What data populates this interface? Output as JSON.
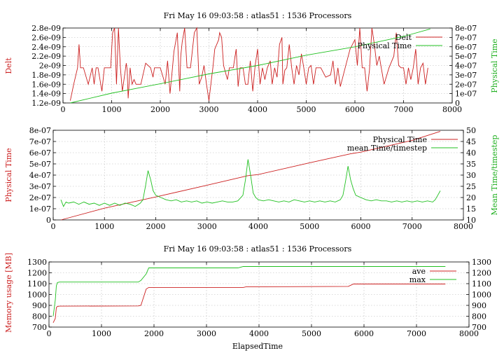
{
  "chart_data": [
    {
      "type": "line",
      "title": "Fri May 16 09:03:58 : atlas51 : 1536 Processors",
      "xlabel": "",
      "ylabel": "Delt",
      "y2label": "Physical Time",
      "xlim": [
        0,
        8000
      ],
      "ylim": [
        1.2e-09,
        2.8e-09
      ],
      "y2lim": [
        0,
        8e-07
      ],
      "x_ticks": [
        0,
        1000,
        2000,
        3000,
        4000,
        5000,
        6000,
        7000,
        8000
      ],
      "x_tick_labels": [
        "0",
        "1000",
        "2000",
        "3000",
        "4000",
        "5000",
        "6000",
        "7000",
        "8000"
      ],
      "y_ticks": [
        1.2e-09,
        1.4e-09,
        1.6e-09,
        1.8e-09,
        2e-09,
        2.2e-09,
        2.4e-09,
        2.6e-09,
        2.8e-09
      ],
      "y_tick_labels": [
        "1.2e-09",
        "1.4e-09",
        "1.6e-09",
        "1.8e-09",
        "2e-09",
        "2.2e-09",
        "2.4e-09",
        "2.6e-09",
        "2.8e-09"
      ],
      "y2_ticks": [
        0,
        1e-07,
        2e-07,
        3e-07,
        4e-07,
        5e-07,
        6e-07,
        7e-07,
        8e-07
      ],
      "y2_tick_labels": [
        "0",
        "1e-07",
        "2e-07",
        "3e-07",
        "4e-07",
        "5e-07",
        "6e-07",
        "7e-07",
        "8e-07"
      ],
      "grid": true,
      "legend": "top-right",
      "series": [
        {
          "name": "Delt",
          "axis": "left",
          "color": "#cc2020",
          "x": [
            150,
            220,
            300,
            330,
            360,
            380,
            420,
            520,
            600,
            640,
            680,
            720,
            800,
            850,
            900,
            980,
            1020,
            1060,
            1100,
            1140,
            1180,
            1220,
            1300,
            1320,
            1340,
            1380,
            1420,
            1460,
            1500,
            1600,
            1700,
            1800,
            1850,
            1880,
            1900,
            1950,
            2000,
            2100,
            2150,
            2200,
            2250,
            2280,
            2350,
            2400,
            2420,
            2450,
            2500,
            2550,
            2620,
            2700,
            2750,
            2800,
            2850,
            2900,
            2950,
            3000,
            3050,
            3080,
            3120,
            3200,
            3220,
            3260,
            3300,
            3380,
            3420,
            3500,
            3560,
            3600,
            3640,
            3700,
            3750,
            3800,
            3850,
            3900,
            3950,
            4000,
            4050,
            4100,
            4150,
            4200,
            4260,
            4300,
            4350,
            4400,
            4450,
            4500,
            4520,
            4560,
            4600,
            4650,
            4700,
            4750,
            4800,
            4850,
            4900,
            4950,
            5000,
            5050,
            5100,
            5150,
            5200,
            5300,
            5400,
            5500,
            5550,
            5600,
            5650,
            5700,
            5800,
            5900,
            6000,
            6050,
            6100,
            6150,
            6200,
            6250,
            6300,
            6350,
            6400,
            6450,
            6500,
            6600,
            6700,
            6800,
            6850,
            6900,
            6950,
            7000,
            7050,
            7100,
            7150,
            7200,
            7250,
            7300,
            7350,
            7400,
            7450,
            7500
          ],
          "values": [
            1.25e-09,
            1.6e-09,
            1.95e-09,
            2.45e-09,
            1.95e-09,
            1.95e-09,
            1.95e-09,
            1.6e-09,
            1.95e-09,
            1.6e-09,
            1.95e-09,
            1.95e-09,
            1.45e-09,
            1.95e-09,
            1.95e-09,
            1.95e-09,
            2.7e-09,
            2.8e-09,
            1.6e-09,
            2.8e-09,
            1.95e-09,
            1.45e-09,
            2.05e-09,
            1.9e-09,
            1.3e-09,
            1.95e-09,
            1.6e-09,
            1.7e-09,
            1.6e-09,
            1.6e-09,
            2.05e-09,
            1.95e-09,
            1.75e-09,
            1.95e-09,
            1.95e-09,
            1.95e-09,
            1.95e-09,
            1.6e-09,
            2.1e-09,
            1.4e-09,
            1.95e-09,
            2.3e-09,
            2.7e-09,
            1.45e-09,
            2.2e-09,
            2.5e-09,
            2.8e-09,
            1.95e-09,
            1.95e-09,
            2.7e-09,
            2.8e-09,
            1.6e-09,
            1.75e-09,
            2e-09,
            1.6e-09,
            1.25e-09,
            1.7e-09,
            1.95e-09,
            2.35e-09,
            2.55e-09,
            2.7e-09,
            2.6e-09,
            2e-09,
            1.7e-09,
            1.95e-09,
            1.95e-09,
            2.35e-09,
            1.55e-09,
            1.95e-09,
            1.95e-09,
            1.6e-09,
            1.6e-09,
            2.1e-09,
            1.45e-09,
            2e-09,
            2.35e-09,
            1.6e-09,
            1.95e-09,
            1.7e-09,
            1.95e-09,
            2.1e-09,
            1.6e-09,
            1.95e-09,
            1.75e-09,
            2.45e-09,
            2.6e-09,
            1.6e-09,
            1.9e-09,
            1.95e-09,
            2.45e-09,
            1.95e-09,
            1.6e-09,
            2e-09,
            1.8e-09,
            2.25e-09,
            1.95e-09,
            1.6e-09,
            1.95e-09,
            2e-09,
            1.6e-09,
            1.95e-09,
            1.95e-09,
            1.75e-09,
            1.8e-09,
            2.1e-09,
            1.6e-09,
            1.95e-09,
            1.55e-09,
            1.95e-09,
            2.35e-09,
            2.55e-09,
            2e-09,
            2.8e-09,
            1.95e-09,
            1.95e-09,
            1.45e-09,
            1.9e-09,
            2.8e-09,
            2.45e-09,
            2e-09,
            2.2e-09,
            1.6e-09,
            1.95e-09,
            2.2e-09,
            2.7e-09,
            2e-09,
            1.95e-09,
            1.95e-09,
            1.6e-09,
            1.95e-09,
            1.7e-09,
            1.95e-09,
            2.35e-09,
            1.6e-09,
            1.95e-09,
            2.05e-09,
            1.6e-09,
            1.95e-09
          ]
        },
        {
          "name": "Physical Time",
          "axis": "right",
          "color": "#20c020",
          "x": [
            150,
            1000,
            2000,
            3000,
            4000,
            5000,
            6000,
            7000,
            7550
          ],
          "values": [
            0,
            1.05e-07,
            2.05e-07,
            3.1e-07,
            4e-07,
            5.1e-07,
            6e-07,
            7.1e-07,
            7.9e-07
          ]
        }
      ]
    },
    {
      "type": "line",
      "title": "",
      "xlabel": "",
      "ylabel": "Physical Time",
      "y2label": "Mean Time/timestep",
      "xlim": [
        0,
        8000
      ],
      "ylim": [
        0,
        8e-07
      ],
      "y2lim": [
        10,
        50
      ],
      "x_ticks": [
        0,
        1000,
        2000,
        3000,
        4000,
        5000,
        6000,
        7000,
        8000
      ],
      "x_tick_labels": [
        "0",
        "1000",
        "2000",
        "3000",
        "4000",
        "5000",
        "6000",
        "7000",
        "8000"
      ],
      "y_ticks": [
        0,
        1e-07,
        2e-07,
        3e-07,
        4e-07,
        5e-07,
        6e-07,
        7e-07,
        8e-07
      ],
      "y_tick_labels": [
        "0",
        "1e-07",
        "2e-07",
        "3e-07",
        "4e-07",
        "5e-07",
        "6e-07",
        "7e-07",
        "8e-07"
      ],
      "y2_ticks": [
        10,
        15,
        20,
        25,
        30,
        35,
        40,
        45,
        50
      ],
      "y2_tick_labels": [
        "10",
        "15",
        "20",
        "25",
        "30",
        "35",
        "40",
        "45",
        "50"
      ],
      "grid": true,
      "legend": "top-right",
      "series": [
        {
          "name": "Physical Time",
          "axis": "left",
          "color": "#cc2020",
          "x": [
            150,
            1000,
            2000,
            3000,
            3800,
            4000,
            5000,
            5800,
            6000,
            7000,
            7550
          ],
          "values": [
            0,
            1.05e-07,
            2.05e-07,
            3.1e-07,
            3.95e-07,
            4.05e-07,
            5.1e-07,
            5.9e-07,
            6.05e-07,
            7.1e-07,
            7.9e-07
          ]
        },
        {
          "name": "mean Time/timestep",
          "axis": "right",
          "color": "#20c020",
          "x": [
            150,
            200,
            250,
            300,
            400,
            500,
            600,
            700,
            800,
            900,
            1000,
            1100,
            1200,
            1300,
            1400,
            1500,
            1600,
            1700,
            1750,
            1800,
            1850,
            1900,
            1950,
            2000,
            2100,
            2200,
            2300,
            2400,
            2500,
            2600,
            2700,
            2800,
            2900,
            3000,
            3100,
            3200,
            3300,
            3400,
            3500,
            3600,
            3700,
            3750,
            3800,
            3850,
            3900,
            3950,
            4000,
            4100,
            4200,
            4300,
            4400,
            4500,
            4600,
            4700,
            4800,
            4900,
            5000,
            5100,
            5200,
            5300,
            5400,
            5500,
            5600,
            5650,
            5700,
            5750,
            5800,
            5850,
            5900,
            6000,
            6100,
            6200,
            6300,
            6400,
            6500,
            6600,
            6700,
            6800,
            6900,
            7000,
            7100,
            7200,
            7300,
            7400,
            7450,
            7500,
            7550
          ],
          "values": [
            19,
            16,
            18,
            17.5,
            18,
            17,
            18,
            17,
            17.5,
            16.5,
            17.5,
            16.5,
            17.5,
            16.5,
            17.5,
            17,
            16,
            17.5,
            19,
            25,
            32,
            28,
            23,
            21,
            20,
            19,
            18.5,
            19,
            18,
            18.5,
            18,
            18.5,
            17.5,
            18,
            17.5,
            18,
            18.5,
            18,
            18,
            18.5,
            21,
            28,
            37,
            30,
            22,
            20,
            19,
            18.5,
            19,
            18.5,
            18,
            18.5,
            18,
            19,
            18.5,
            18,
            18.5,
            18,
            18.5,
            18,
            18.5,
            18,
            19,
            21,
            27,
            34,
            28,
            24,
            21,
            20,
            19,
            18.5,
            19,
            18.5,
            18.5,
            18,
            18.5,
            18,
            18.5,
            18,
            18.5,
            18,
            18.5,
            18,
            19,
            21,
            23
          ]
        }
      ]
    },
    {
      "type": "line",
      "title": "Fri May 16 09:03:58 : atlas51 : 1536 Processors",
      "xlabel": "ElapsedTime",
      "ylabel": "Memory usage [MB]",
      "y2label": "",
      "xlim": [
        0,
        8000
      ],
      "ylim": [
        700,
        1300
      ],
      "y2lim": [
        700,
        1300
      ],
      "x_ticks": [
        0,
        1000,
        2000,
        3000,
        4000,
        5000,
        6000,
        7000,
        8000
      ],
      "x_tick_labels": [
        "0",
        "1000",
        "2000",
        "3000",
        "4000",
        "5000",
        "6000",
        "7000",
        "8000"
      ],
      "y_ticks": [
        700,
        800,
        900,
        1000,
        1100,
        1200,
        1300
      ],
      "y_tick_labels": [
        "700",
        "800",
        "900",
        "1000",
        "1100",
        "1200",
        "1300"
      ],
      "y2_ticks": [
        700,
        800,
        900,
        1000,
        1100,
        1200,
        1300
      ],
      "y2_tick_labels": [
        "700",
        "800",
        "900",
        "1000",
        "1100",
        "1200",
        "1300"
      ],
      "grid": true,
      "legend": "top-right",
      "series": [
        {
          "name": "ave",
          "axis": "left",
          "color": "#cc2020",
          "x": [
            80,
            120,
            140,
            160,
            200,
            1700,
            1750,
            1850,
            1900,
            3700,
            3750,
            5700,
            5800,
            7550
          ],
          "values": [
            740,
            780,
            880,
            890,
            893,
            895,
            900,
            1050,
            1065,
            1065,
            1070,
            1075,
            1097,
            1097
          ]
        },
        {
          "name": "max",
          "axis": "left",
          "color": "#20c020",
          "x": [
            80,
            120,
            140,
            160,
            200,
            1700,
            1750,
            1850,
            1900,
            3600,
            3700,
            5700,
            5800,
            7550
          ],
          "values": [
            800,
            950,
            1080,
            1110,
            1115,
            1115,
            1130,
            1190,
            1245,
            1245,
            1258,
            1258,
            1258,
            1258
          ]
        }
      ]
    }
  ]
}
